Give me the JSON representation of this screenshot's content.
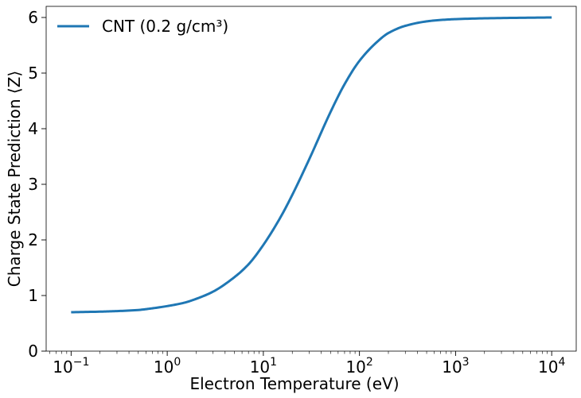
{
  "chart_data": {
    "type": "line",
    "xlabel": "Electron Temperature (eV)",
    "ylabel": "Charge State Prediction ⟨Z⟩",
    "xscale": "log",
    "xlim": [
      0.055,
      18000
    ],
    "ylim": [
      0,
      6.2
    ],
    "x_ticks": [
      {
        "value": 0.1,
        "base": "10",
        "exp": "−1"
      },
      {
        "value": 1,
        "base": "10",
        "exp": "0"
      },
      {
        "value": 10,
        "base": "10",
        "exp": "1"
      },
      {
        "value": 100,
        "base": "10",
        "exp": "2"
      },
      {
        "value": 1000,
        "base": "10",
        "exp": "3"
      },
      {
        "value": 10000,
        "base": "10",
        "exp": "4"
      }
    ],
    "y_ticks": [
      "0",
      "1",
      "2",
      "3",
      "4",
      "5",
      "6"
    ],
    "grid": false,
    "legend_position": "top-left",
    "series": [
      {
        "name": "CNT (0.2 g/cm³)",
        "color": "#1f77b4",
        "x": [
          0.1,
          0.2,
          0.3,
          0.5,
          0.7,
          1,
          1.5,
          2,
          3,
          5,
          7,
          10,
          15,
          20,
          30,
          50,
          70,
          100,
          150,
          200,
          300,
          500,
          700,
          1000,
          2000,
          5000,
          10000
        ],
        "y": [
          0.7,
          0.71,
          0.72,
          0.74,
          0.77,
          0.81,
          0.87,
          0.94,
          1.07,
          1.33,
          1.56,
          1.91,
          2.4,
          2.81,
          3.45,
          4.3,
          4.8,
          5.22,
          5.55,
          5.72,
          5.85,
          5.93,
          5.955,
          5.97,
          5.985,
          5.995,
          6.0
        ]
      }
    ]
  }
}
